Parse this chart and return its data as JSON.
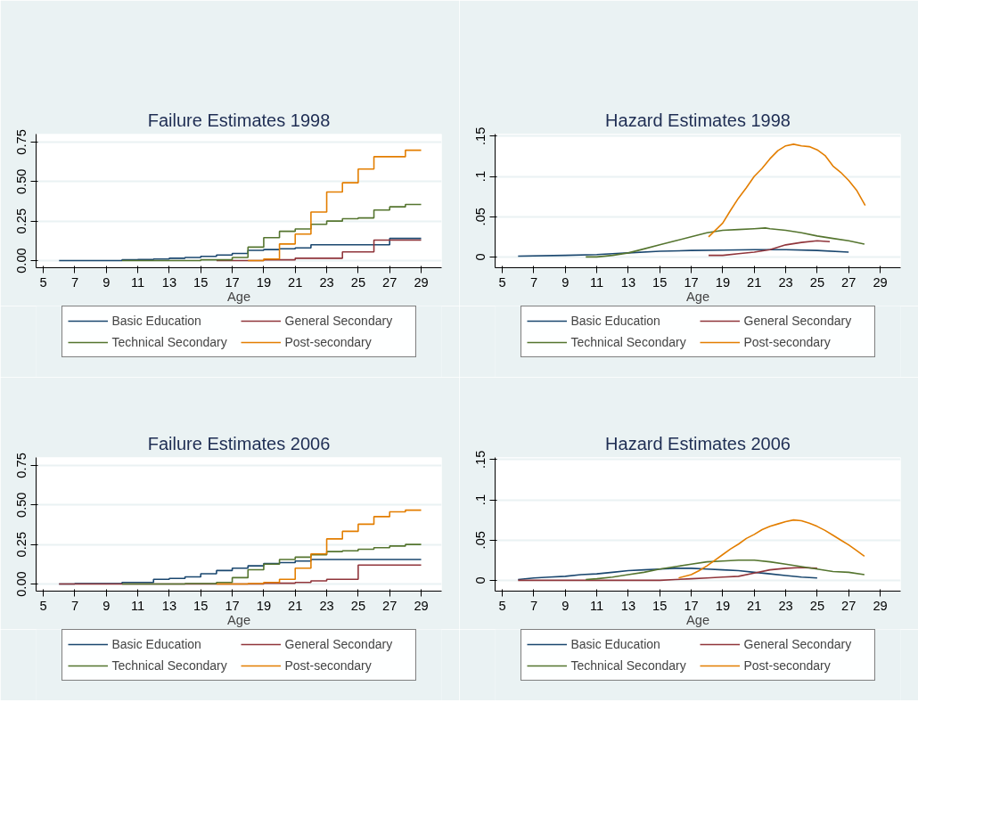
{
  "chart_data": [
    {
      "type": "step",
      "title": "Failure Estimates 1998",
      "xlabel": "Age",
      "xlim": [
        4.54,
        30.3
      ],
      "xticks": [
        5,
        7,
        9,
        11,
        13,
        15,
        17,
        19,
        21,
        23,
        25,
        27,
        29
      ],
      "ylim": [
        -0.045,
        0.8
      ],
      "yticks": [
        {
          "value": 0,
          "label": "0.00"
        },
        0.25,
        {
          "value": 0.5,
          "label": "0.50"
        },
        0.75
      ],
      "grid": "y",
      "legend": "bottom",
      "series": [
        {
          "name": "Basic Education",
          "color": "#1a476f",
          "x": [
            6,
            10,
            11,
            12,
            13,
            14,
            15,
            16,
            17,
            18,
            19,
            20,
            21,
            22,
            27,
            29
          ],
          "values": [
            0,
            0.005,
            0.007,
            0.01,
            0.015,
            0.02,
            0.027,
            0.035,
            0.045,
            0.065,
            0.07,
            0.075,
            0.08,
            0.1,
            0.14,
            0.14
          ]
        },
        {
          "name": "General Secondary",
          "color": "#90353b",
          "x": [
            16,
            19,
            21,
            24,
            26,
            29
          ],
          "values": [
            0,
            0.005,
            0.015,
            0.055,
            0.13,
            0.13
          ]
        },
        {
          "name": "Technical Secondary",
          "color": "#55752f",
          "x": [
            10,
            15,
            17,
            18,
            19,
            20,
            21,
            22,
            23,
            24,
            25,
            26,
            27,
            28,
            29
          ],
          "values": [
            0,
            0.005,
            0.02,
            0.085,
            0.145,
            0.185,
            0.2,
            0.23,
            0.25,
            0.265,
            0.27,
            0.32,
            0.34,
            0.355,
            0.355
          ]
        },
        {
          "name": "Post-secondary",
          "color": "#e37e00",
          "x": [
            18,
            19,
            20,
            21,
            22,
            23,
            24,
            25,
            26,
            28,
            29
          ],
          "values": [
            0,
            0.01,
            0.105,
            0.168,
            0.307,
            0.434,
            0.492,
            0.579,
            0.657,
            0.698,
            0.698
          ]
        }
      ]
    },
    {
      "type": "line",
      "title": "Hazard Estimates 1998",
      "xlabel": "Age",
      "xlim": [
        4.54,
        30.3
      ],
      "xticks": [
        5,
        7,
        9,
        11,
        13,
        15,
        17,
        19,
        21,
        23,
        25,
        27,
        29
      ],
      "ylim": [
        -0.0134,
        0.1526
      ],
      "yticks": [
        0,
        {
          "value": 0.05,
          "label": ".05"
        },
        {
          "value": 0.1,
          "label": ".1"
        },
        {
          "value": 0.15,
          "label": ".15"
        }
      ],
      "grid": "y",
      "legend": "bottom",
      "series": [
        {
          "name": "Basic Education",
          "color": "#1a476f",
          "x": [
            6,
            9,
            11,
            12,
            13,
            15,
            17,
            19,
            21,
            23,
            25,
            27
          ],
          "values": [
            0.001,
            0.002,
            0.003,
            0.004,
            0.005,
            0.007,
            0.008,
            0.0085,
            0.009,
            0.009,
            0.008,
            0.006
          ]
        },
        {
          "name": "General Secondary",
          "color": "#90353b",
          "x": [
            18.1,
            19,
            20,
            21,
            22,
            23,
            24,
            25,
            25.8
          ],
          "values": [
            0.002,
            0.002,
            0.004,
            0.006,
            0.009,
            0.015,
            0.018,
            0.02,
            0.019
          ]
        },
        {
          "name": "Technical Secondary",
          "color": "#55752f",
          "x": [
            10.3,
            11,
            12,
            13,
            14,
            15,
            16,
            17,
            18,
            19,
            20,
            21,
            21.7,
            22,
            23,
            24,
            25,
            26,
            27,
            28
          ],
          "values": [
            0,
            0,
            0.002,
            0.005,
            0.01,
            0.015,
            0.02,
            0.025,
            0.03,
            0.033,
            0.034,
            0.035,
            0.036,
            0.035,
            0.033,
            0.03,
            0.026,
            0.023,
            0.02,
            0.016
          ]
        },
        {
          "name": "Post-secondary",
          "color": "#e37e00",
          "x": [
            18.1,
            19,
            19.5,
            20,
            20.5,
            21,
            21.5,
            22,
            22.5,
            23,
            23.5,
            24,
            24.5,
            25,
            25.5,
            26,
            26.5,
            27,
            27.5,
            28.05
          ],
          "values": [
            0.025,
            0.042,
            0.058,
            0.073,
            0.086,
            0.1,
            0.11,
            0.122,
            0.132,
            0.138,
            0.14,
            0.138,
            0.137,
            0.133,
            0.126,
            0.113,
            0.105,
            0.095,
            0.083,
            0.064
          ]
        }
      ]
    },
    {
      "type": "step",
      "title": "Failure Estimates 2006",
      "xlabel": "Age",
      "xlim": [
        4.54,
        30.3
      ],
      "xticks": [
        5,
        7,
        9,
        11,
        13,
        15,
        17,
        19,
        21,
        23,
        25,
        27,
        29
      ],
      "ylim": [
        -0.045,
        0.8
      ],
      "yticks": [
        {
          "value": 0,
          "label": "0.00"
        },
        0.25,
        {
          "value": 0.5,
          "label": "0.50"
        },
        0.75
      ],
      "grid": "y",
      "legend": "bottom",
      "series": [
        {
          "name": "Basic Education",
          "color": "#1a476f",
          "x": [
            6,
            7,
            10,
            12,
            13,
            14,
            15,
            16,
            17,
            18,
            19,
            20,
            21,
            22,
            29
          ],
          "values": [
            0,
            0.003,
            0.01,
            0.03,
            0.035,
            0.045,
            0.065,
            0.085,
            0.1,
            0.115,
            0.13,
            0.135,
            0.145,
            0.155,
            0.155
          ]
        },
        {
          "name": "General Secondary",
          "color": "#90353b",
          "x": [
            6,
            19,
            21,
            22,
            23,
            25,
            29
          ],
          "values": [
            0,
            0.005,
            0.01,
            0.02,
            0.03,
            0.12,
            0.12
          ]
        },
        {
          "name": "Technical Secondary",
          "color": "#55752f",
          "x": [
            10,
            14,
            16,
            17,
            18,
            19,
            20,
            21,
            22,
            23,
            24,
            25,
            26,
            27,
            28,
            29
          ],
          "values": [
            0,
            0.003,
            0.01,
            0.04,
            0.09,
            0.125,
            0.155,
            0.17,
            0.185,
            0.205,
            0.21,
            0.22,
            0.23,
            0.24,
            0.25,
            0.25
          ]
        },
        {
          "name": "Post-secondary",
          "color": "#e37e00",
          "x": [
            16,
            18,
            19,
            20,
            21,
            22,
            23,
            24,
            25,
            26,
            27,
            28,
            29
          ],
          "values": [
            0,
            0.003,
            0.01,
            0.03,
            0.1,
            0.19,
            0.285,
            0.333,
            0.378,
            0.426,
            0.456,
            0.467,
            0.467
          ]
        }
      ]
    },
    {
      "type": "line",
      "title": "Hazard Estimates 2006",
      "xlabel": "Age",
      "xlim": [
        4.54,
        30.3
      ],
      "xticks": [
        5,
        7,
        9,
        11,
        13,
        15,
        17,
        19,
        21,
        23,
        25,
        27,
        29
      ],
      "ylim": [
        -0.0134,
        0.1526
      ],
      "yticks": [
        0,
        {
          "value": 0.05,
          "label": ".05"
        },
        {
          "value": 0.1,
          "label": ".1"
        },
        {
          "value": 0.15,
          "label": ".15"
        }
      ],
      "grid": "y",
      "legend": "bottom",
      "series": [
        {
          "name": "Basic Education",
          "color": "#1a476f",
          "x": [
            6,
            7,
            8,
            9,
            10,
            11,
            12,
            13,
            14,
            15,
            16,
            17,
            18,
            19,
            20,
            21,
            22,
            23,
            24,
            25
          ],
          "values": [
            0.001,
            0.003,
            0.004,
            0.005,
            0.007,
            0.008,
            0.01,
            0.012,
            0.013,
            0.014,
            0.015,
            0.015,
            0.014,
            0.013,
            0.012,
            0.01,
            0.008,
            0.006,
            0.004,
            0.003
          ]
        },
        {
          "name": "General Secondary",
          "color": "#90353b",
          "x": [
            6,
            15,
            16,
            17,
            18,
            19,
            20,
            21,
            22,
            23,
            24,
            25
          ],
          "values": [
            0,
            0,
            0.001,
            0.002,
            0.003,
            0.004,
            0.005,
            0.009,
            0.013,
            0.015,
            0.016,
            0.015
          ]
        },
        {
          "name": "Technical Secondary",
          "color": "#55752f",
          "x": [
            10.3,
            11,
            12,
            13,
            14,
            15,
            16,
            17,
            18,
            19,
            20,
            21,
            22,
            23,
            24,
            25,
            26,
            27,
            28
          ],
          "values": [
            0.001,
            0.002,
            0.004,
            0.007,
            0.01,
            0.014,
            0.017,
            0.02,
            0.023,
            0.024,
            0.025,
            0.025,
            0.023,
            0.02,
            0.017,
            0.014,
            0.011,
            0.01,
            0.007
          ]
        },
        {
          "name": "Post-secondary",
          "color": "#e37e00",
          "x": [
            16.2,
            17,
            17.5,
            18,
            18.5,
            19,
            19.5,
            20,
            20.5,
            21,
            21.5,
            22,
            22.5,
            23,
            23.5,
            24,
            24.5,
            25,
            25.5,
            26,
            26.5,
            27,
            27.5,
            28
          ],
          "values": [
            0.003,
            0.007,
            0.012,
            0.018,
            0.025,
            0.032,
            0.039,
            0.045,
            0.052,
            0.057,
            0.063,
            0.067,
            0.07,
            0.073,
            0.075,
            0.074,
            0.071,
            0.067,
            0.062,
            0.056,
            0.05,
            0.044,
            0.037,
            0.03
          ]
        }
      ]
    }
  ]
}
